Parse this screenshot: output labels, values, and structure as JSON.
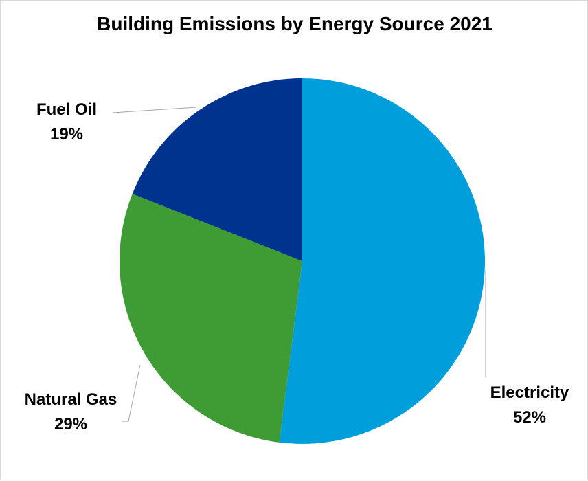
{
  "chart_data": {
    "type": "pie",
    "title": "Building Emissions by Energy Source 2021",
    "legend": "none",
    "slices": [
      {
        "label": "Electricity",
        "value": 52,
        "value_label": "52%",
        "color": "#009edb"
      },
      {
        "label": "Natural Gas",
        "value": 29,
        "value_label": "29%",
        "color": "#3f9c35"
      },
      {
        "label": "Fuel Oil",
        "value": 19,
        "value_label": "19%",
        "color": "#00338d"
      }
    ]
  }
}
